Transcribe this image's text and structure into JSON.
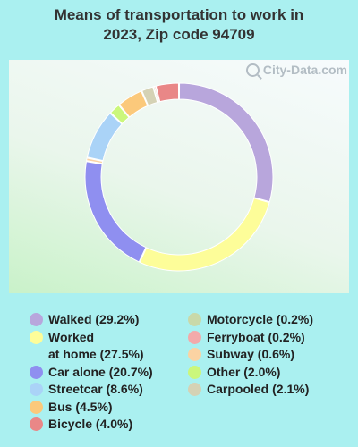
{
  "title_line1": "Means of transportation to work in",
  "title_line2": "2023, Zip code 94709",
  "watermark": "City-Data.com",
  "watermark_icon": "magnifier-icon",
  "chart_data": {
    "type": "pie",
    "donut": true,
    "title": "Means of transportation to work in 2023, Zip code 94709",
    "slices": [
      {
        "label": "Walked",
        "value": 29.2,
        "legend": "Walked (29.2%)",
        "color": "#b8a6dc"
      },
      {
        "label": "Worked at home",
        "value": 27.5,
        "legend": "Worked\nat home (27.5%)",
        "color": "#fdfd99"
      },
      {
        "label": "Car alone",
        "value": 20.7,
        "legend": "Car alone (20.7%)",
        "color": "#8f8ff0"
      },
      {
        "label": "Subway",
        "value": 0.6,
        "legend": "Subway (0.6%)",
        "color": "#fbd3a3"
      },
      {
        "label": "Streetcar",
        "value": 8.6,
        "legend": "Streetcar (8.6%)",
        "color": "#aad3f7"
      },
      {
        "label": "Other",
        "value": 2.0,
        "legend": "Other (2.0%)",
        "color": "#cbf77b"
      },
      {
        "label": "Bus",
        "value": 4.5,
        "legend": "Bus (4.5%)",
        "color": "#fbc97b"
      },
      {
        "label": "Carpooled",
        "value": 2.1,
        "legend": "Carpooled (2.1%)",
        "color": "#d5d2b5"
      },
      {
        "label": "Motorcycle",
        "value": 0.2,
        "legend": "Motorcycle (0.2%)",
        "color": "#c9d9a9"
      },
      {
        "label": "Ferryboat",
        "value": 0.2,
        "legend": "Ferryboat (0.2%)",
        "color": "#f3aaaa"
      },
      {
        "label": "Bicycle",
        "value": 4.0,
        "legend": "Bicycle (4.0%)",
        "color": "#e98787"
      }
    ],
    "legend_columns": [
      [
        "Walked",
        "Worked at home",
        "Car alone",
        "Streetcar",
        "Bus",
        "Bicycle"
      ],
      [
        "Motorcycle",
        "Ferryboat",
        "Subway",
        "Other",
        "Carpooled"
      ]
    ]
  }
}
